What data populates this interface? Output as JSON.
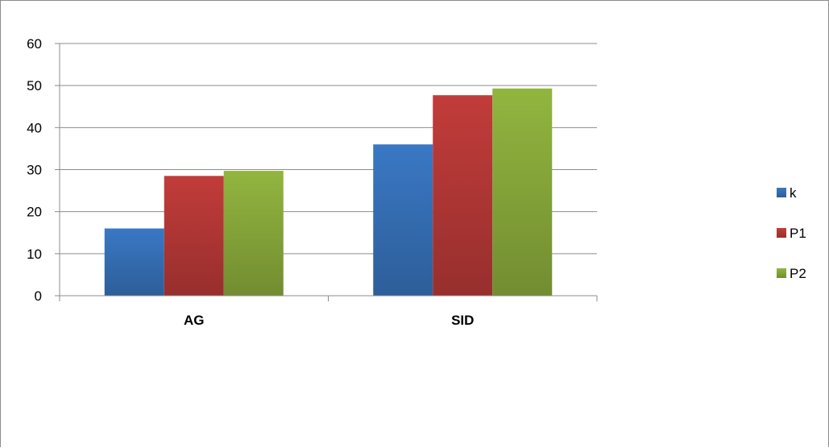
{
  "chart_data": {
    "type": "bar",
    "categories": [
      "AG",
      "SID"
    ],
    "series": [
      {
        "name": "k",
        "values": [
          16,
          36
        ],
        "color": "#3a78c4"
      },
      {
        "name": "P1",
        "values": [
          28.5,
          47.7
        ],
        "color": "#c13c3a"
      },
      {
        "name": "P2",
        "values": [
          29.7,
          49.3
        ],
        "color": "#92b53f"
      }
    ],
    "title": "",
    "xlabel": "",
    "ylabel": "",
    "ylim": [
      0,
      60
    ],
    "yticks": [
      0,
      10,
      20,
      30,
      40,
      50,
      60
    ],
    "grid": true,
    "legend": "right"
  }
}
